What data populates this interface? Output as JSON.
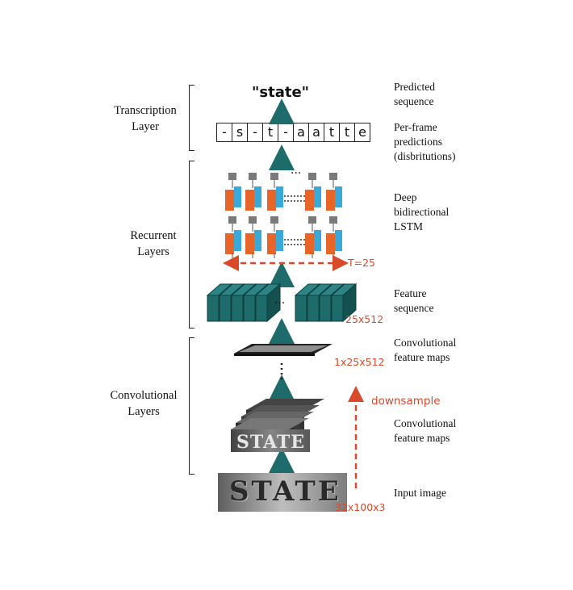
{
  "layers": {
    "transcription": "Transcription\nLayer",
    "recurrent": "Recurrent\nLayers",
    "convolutional": "Convolutional\nLayers"
  },
  "output": {
    "predicted_text": "\"state\"",
    "frame_chars": [
      "-",
      "s",
      "-",
      "t",
      "-",
      "a",
      "a",
      "t",
      "t",
      "e"
    ]
  },
  "annotations": {
    "predicted_sequence": "Predicted\nsequence",
    "per_frame": "Per-frame\npredictions\n(disbritutions)",
    "deep_lstm": "Deep\nbidirectional\nLSTM",
    "feature_sequence": "Feature\nsequence",
    "conv_maps_top": "Convolutional\nfeature maps",
    "conv_maps_bottom": "Convolutional\nfeature maps",
    "input_image": "Input image"
  },
  "dimensions": {
    "t": "T=25",
    "feature_seq": "25x512",
    "conv_maps": "1x25x512",
    "downsample": "downsample",
    "input": "32x100x3"
  },
  "input_word": "STATE",
  "ellipsis": "...",
  "colors": {
    "teal": "#1e6b6b",
    "orange": "#e8652a",
    "lstm_blue": "#3aa8d8",
    "gray": "#7a7a7a",
    "red": "#d84a2a"
  }
}
